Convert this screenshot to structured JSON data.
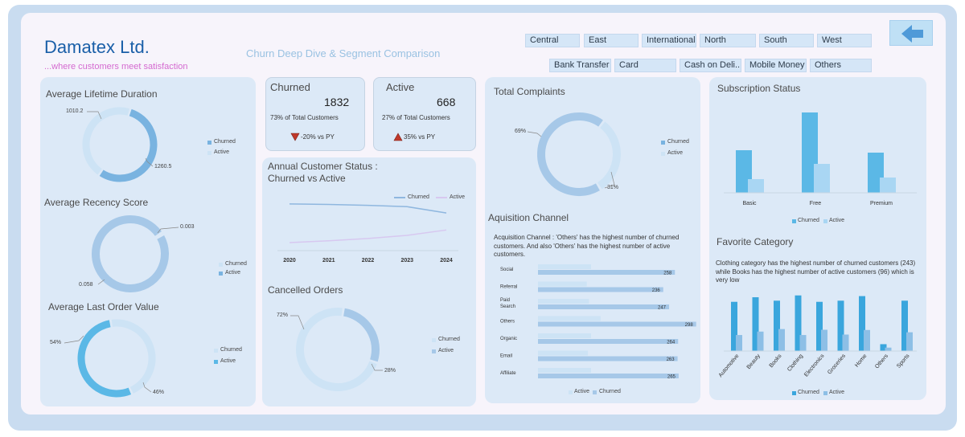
{
  "header": {
    "brand": "Damatex Ltd.",
    "tagline": "...where customers meet satisfaction",
    "subtitle": "Churn Deep Dive &  Segment Comparison"
  },
  "region_slicers": [
    "Central",
    "East",
    "International",
    "North",
    "South",
    "West"
  ],
  "payment_slicers": [
    "Bank Transfer",
    "Card",
    "Cash on Deli...",
    "Mobile Money",
    "Others"
  ],
  "back_button": {
    "icon": "arrow-left-icon"
  },
  "colors": {
    "churned": "#5bb8e6",
    "active": "#a9d6f3",
    "churned_donut": "#79b3e0",
    "active_donut": "#cde3f5"
  },
  "lifetime": {
    "title": "Average Lifetime Duration",
    "active_value": "1010.2",
    "churned_value": "1260.5",
    "legend": [
      "Churned",
      "Active"
    ]
  },
  "recency": {
    "title": "Average Recency Score",
    "active_value": "0.003",
    "churned_value": "0.058",
    "legend": [
      "Churned",
      "Active"
    ]
  },
  "order_value": {
    "title": "Average Last Order Value",
    "active_value": "54%",
    "churned_value": "46%",
    "legend": [
      "Churned",
      "Active"
    ]
  },
  "kpi_churned": {
    "title": "Churned",
    "value": "1832",
    "pct": "73% of Total Customers",
    "delta": "-20% vs PY"
  },
  "kpi_active": {
    "title": "Active",
    "value": "668",
    "pct": "27% of Total Customers",
    "delta": "35% vs PY"
  },
  "annual": {
    "title_line1": "Annual Customer Status :",
    "title_line2": "Churned vs Active",
    "legend": [
      "Churned",
      "Active"
    ],
    "years": [
      "2020",
      "2021",
      "2022",
      "2023",
      "2024"
    ]
  },
  "cancelled": {
    "title": "Cancelled Orders",
    "churned_pct": "28%",
    "active_pct": "72%",
    "legend": [
      "Churned",
      "Active"
    ]
  },
  "complaints": {
    "title": "Total Complaints",
    "churned_pct": "69%",
    "active_pct": "31%",
    "legend": [
      "Churned",
      "Active"
    ]
  },
  "acquisition": {
    "title": "Aquisition Channel",
    "note": "Acquisition Channel :  'Others'  has the highest number of churned customers. And also 'Others' has the highest number of active customers.",
    "legend": [
      "Active",
      "Churned"
    ]
  },
  "subscription": {
    "title": "Subscription Status",
    "legend": [
      "Churned",
      "Active"
    ]
  },
  "favorite": {
    "title": "Favorite Category",
    "note": "Clothing category has the highest number of churned customers (243) while Books has the highest number of active customers (96) which is very low",
    "legend": [
      "Churned",
      "Active"
    ]
  },
  "chart_data": [
    {
      "type": "line",
      "x": [
        "2020",
        "2021",
        "2022",
        "2023",
        "2024"
      ],
      "series": [
        {
          "name": "Churned",
          "values": [
            520,
            515,
            505,
            490,
            420
          ]
        },
        {
          "name": "Active",
          "values": [
            90,
            110,
            135,
            170,
            230
          ]
        }
      ]
    },
    {
      "type": "bar",
      "orientation": "horizontal",
      "categories": [
        "Social",
        "Referral",
        "Paid Search",
        "Others",
        "Organic",
        "Email",
        "Affiliate"
      ],
      "series": [
        {
          "name": "Churned",
          "values": [
            258,
            236,
            247,
            298,
            264,
            263,
            265
          ]
        },
        {
          "name": "Active",
          "values": [
            100,
            92,
            96,
            118,
            100,
            94,
            100
          ]
        }
      ]
    },
    {
      "type": "bar",
      "categories": [
        "Basic",
        "Free",
        "Premium"
      ],
      "series": [
        {
          "name": "Churned",
          "values": [
            530,
            1000,
            500
          ]
        },
        {
          "name": "Active",
          "values": [
            170,
            360,
            190
          ]
        }
      ]
    },
    {
      "type": "bar",
      "categories": [
        "Automotive",
        "Beauty",
        "Books",
        "Clothing",
        "Electronics",
        "Groceries",
        "Home",
        "Others",
        "Sports"
      ],
      "series": [
        {
          "name": "Churned",
          "values": [
            215,
            235,
            220,
            243,
            215,
            220,
            240,
            30,
            220
          ]
        },
        {
          "name": "Active",
          "values": [
            70,
            85,
            96,
            70,
            93,
            72,
            92,
            15,
            82
          ]
        }
      ]
    }
  ]
}
